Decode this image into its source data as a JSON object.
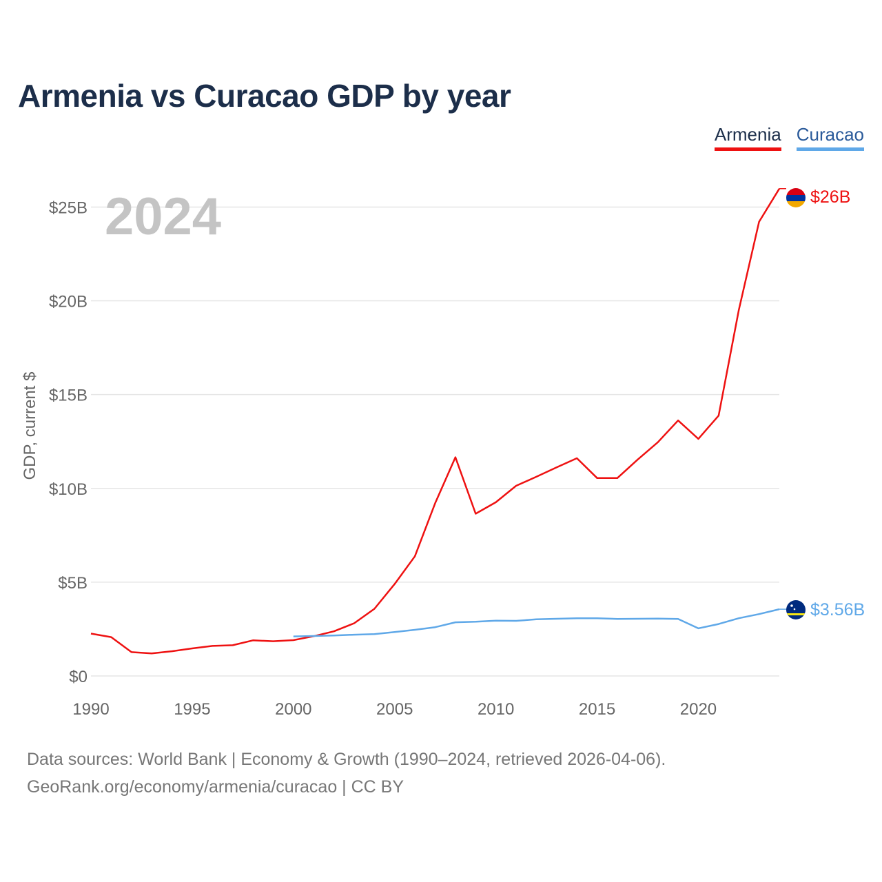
{
  "title": "Armenia vs Curacao GDP by year",
  "legend": [
    {
      "label": "Armenia",
      "color": "#ee1111"
    },
    {
      "label": "Curacao",
      "color": "#5fa8e8"
    }
  ],
  "year_watermark": "2024",
  "footer": {
    "line1": "Data sources: World Bank | Economy & Growth (1990–2024, retrieved 2026-04-06).",
    "line2": "GeoRank.org/economy/armenia/curacao | CC BY"
  },
  "chart_data": {
    "type": "line",
    "title": "Armenia vs Curacao GDP by year",
    "xlabel": "",
    "ylabel": "GDP, current $",
    "xlim": [
      1990,
      2024
    ],
    "ylim": [
      0,
      27
    ],
    "x_ticks": [
      1990,
      1995,
      2000,
      2005,
      2010,
      2015,
      2020
    ],
    "y_ticks": [
      0,
      5,
      10,
      15,
      20,
      25
    ],
    "y_tick_labels": [
      "$0",
      "$5B",
      "$10B",
      "$15B",
      "$20B",
      "$25B"
    ],
    "grid": true,
    "legend_position": "top-right",
    "series": [
      {
        "name": "Armenia",
        "color": "#ee1111",
        "end_label": "$26B",
        "x": [
          1990,
          1991,
          1992,
          1993,
          1994,
          1995,
          1996,
          1997,
          1998,
          1999,
          2000,
          2001,
          2002,
          2003,
          2004,
          2005,
          2006,
          2007,
          2008,
          2009,
          2010,
          2011,
          2012,
          2013,
          2014,
          2015,
          2016,
          2017,
          2018,
          2019,
          2020,
          2021,
          2022,
          2023,
          2024
        ],
        "values": [
          2.26,
          2.07,
          1.27,
          1.2,
          1.32,
          1.47,
          1.6,
          1.64,
          1.9,
          1.85,
          1.91,
          2.12,
          2.38,
          2.81,
          3.58,
          4.9,
          6.38,
          9.21,
          11.66,
          8.65,
          9.26,
          10.14,
          10.62,
          11.12,
          11.61,
          10.55,
          10.55,
          11.53,
          12.46,
          13.62,
          12.64,
          13.88,
          19.51,
          24.21,
          25.98
        ]
      },
      {
        "name": "Curacao",
        "color": "#5fa8e8",
        "end_label": "$3.56B",
        "x": [
          2000,
          2001,
          2002,
          2003,
          2004,
          2005,
          2006,
          2007,
          2008,
          2009,
          2010,
          2011,
          2012,
          2013,
          2014,
          2015,
          2016,
          2017,
          2018,
          2019,
          2020,
          2021,
          2022,
          2023,
          2024
        ],
        "values": [
          2.11,
          2.13,
          2.16,
          2.2,
          2.23,
          2.34,
          2.46,
          2.6,
          2.86,
          2.89,
          2.95,
          2.94,
          3.02,
          3.05,
          3.08,
          3.08,
          3.04,
          3.05,
          3.06,
          3.04,
          2.54,
          2.77,
          3.08,
          3.3,
          3.56
        ]
      }
    ]
  }
}
